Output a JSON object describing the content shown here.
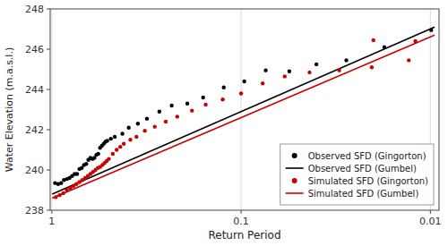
{
  "chart_data": {
    "type": "scatter",
    "xlabel": "Return Period",
    "ylabel": "Water Elevation (m.a.s.l.)",
    "log": "x",
    "xlim": [
      1.02,
      0.009
    ],
    "xticks": [
      1,
      0.1,
      0.01
    ],
    "ylim": [
      238,
      248
    ],
    "yticks": [
      238,
      240,
      242,
      244,
      246,
      248
    ],
    "grid": true,
    "legend": "lower right",
    "series": [
      {
        "name": "Observed SFD (Gingorton)",
        "type": "scatter",
        "color": "#000000",
        "x": [
          0.9615,
          0.9259,
          0.8929,
          0.8621,
          0.8333,
          0.8065,
          0.7813,
          0.7576,
          0.7353,
          0.7143,
          0.6944,
          0.6757,
          0.6579,
          0.641,
          0.625,
          0.6098,
          0.5952,
          0.5814,
          0.5682,
          0.5556,
          0.5435,
          0.5319,
          0.5208,
          0.5102,
          0.4878,
          0.4651,
          0.4237,
          0.3922,
          0.3509,
          0.3145,
          0.2703,
          0.2326,
          0.1923,
          0.1587,
          0.1235,
          0.0962,
          0.0741,
          0.0556,
          0.04,
          0.0278,
          0.0175,
          0.0099
        ],
        "values": [
          239.35,
          239.3,
          239.35,
          239.5,
          239.55,
          239.6,
          239.7,
          239.8,
          239.8,
          240.05,
          240.1,
          240.25,
          240.3,
          240.5,
          240.6,
          240.55,
          240.6,
          240.75,
          240.8,
          241.1,
          241.2,
          241.3,
          241.4,
          241.45,
          241.55,
          241.65,
          241.8,
          242.1,
          242.3,
          242.55,
          242.9,
          243.2,
          243.3,
          243.6,
          244.1,
          244.4,
          244.95,
          244.9,
          245.25,
          245.45,
          246.1,
          246.95
        ]
      },
      {
        "name": "Observed SFD (Gumbel)",
        "type": "line",
        "color": "#000000",
        "x": [
          0.995,
          0.0095
        ],
        "values": [
          238.8,
          247.1
        ]
      },
      {
        "name": "Simulated SFD (Gingorton)",
        "type": "scatter",
        "color": "#cc0000",
        "x": [
          0.9524,
          0.9091,
          0.8696,
          0.8333,
          0.8,
          0.7692,
          0.7407,
          0.7143,
          0.6897,
          0.6667,
          0.6452,
          0.625,
          0.6061,
          0.5882,
          0.5714,
          0.5556,
          0.5405,
          0.5263,
          0.5128,
          0.5,
          0.4762,
          0.4545,
          0.4348,
          0.4167,
          0.3846,
          0.3571,
          0.3226,
          0.2857,
          0.25,
          0.2174,
          0.1818,
          0.1538,
          0.125,
          0.1,
          0.0769,
          0.0588,
          0.0435,
          0.0303,
          0.0204,
          0.013,
          0.02,
          0.012
        ],
        "values": [
          238.65,
          238.75,
          238.85,
          239.0,
          239.1,
          239.2,
          239.3,
          239.4,
          239.5,
          239.6,
          239.7,
          239.8,
          239.9,
          240.0,
          240.1,
          240.15,
          240.25,
          240.35,
          240.45,
          240.55,
          240.8,
          241.0,
          241.15,
          241.3,
          241.5,
          241.65,
          241.95,
          242.15,
          242.4,
          242.65,
          242.95,
          243.25,
          243.5,
          243.8,
          244.3,
          244.65,
          244.85,
          244.95,
          245.1,
          245.45,
          246.45,
          246.4
        ]
      },
      {
        "name": "Simulated SFD (Gumbel)",
        "type": "line",
        "color": "#cc0000",
        "x": [
          0.995,
          0.0095
        ],
        "values": [
          238.6,
          246.7
        ]
      }
    ]
  }
}
